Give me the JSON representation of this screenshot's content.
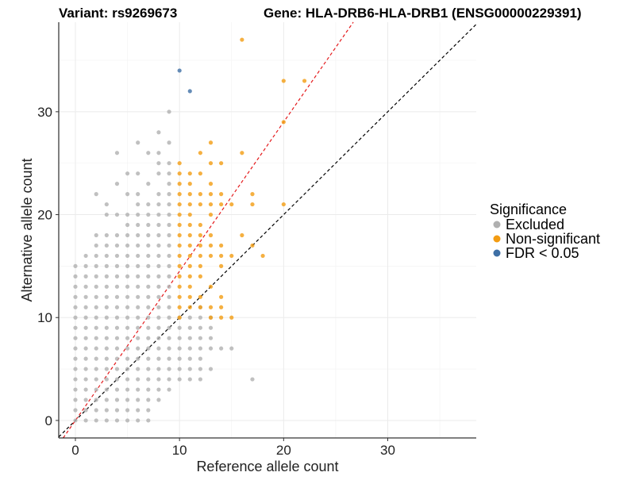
{
  "chart_data": {
    "type": "scatter",
    "title_left": "Variant: rs9269673",
    "title_right": "Gene: HLA-DRB6-HLA-DRB1 (ENSG00000229391)",
    "xlabel": "Reference allele count",
    "ylabel": "Alternative allele count",
    "xlim": [
      -1.6,
      38.5
    ],
    "ylim": [
      -1.7,
      38.7
    ],
    "xticks": [
      0,
      10,
      20,
      30
    ],
    "yticks": [
      0,
      10,
      20,
      30
    ],
    "grid": true,
    "reference_lines": [
      {
        "name": "identity",
        "slope": 1,
        "intercept": 0,
        "color": "#000000"
      },
      {
        "name": "fit",
        "slope": 1.45,
        "intercept": 0,
        "color": "#e41a1c"
      }
    ],
    "legend": {
      "title": "Significance",
      "position": "right",
      "entries": [
        {
          "label": "Excluded",
          "color": "#b0b0b0"
        },
        {
          "label": "Non-significant",
          "color": "#f39c12"
        },
        {
          "label": "FDR < 0.05",
          "color": "#3e6fa5"
        }
      ]
    },
    "series": [
      {
        "name": "Excluded",
        "color": "#b0b0b0",
        "points": [
          [
            0,
            0
          ],
          [
            0,
            1
          ],
          [
            0,
            2
          ],
          [
            0,
            3
          ],
          [
            0,
            4
          ],
          [
            0,
            5
          ],
          [
            0,
            6
          ],
          [
            0,
            7
          ],
          [
            0,
            8
          ],
          [
            0,
            9
          ],
          [
            0,
            10
          ],
          [
            0,
            11
          ],
          [
            0,
            12
          ],
          [
            0,
            13
          ],
          [
            0,
            14
          ],
          [
            0,
            15
          ],
          [
            1,
            0
          ],
          [
            1,
            1
          ],
          [
            1,
            2
          ],
          [
            1,
            3
          ],
          [
            1,
            4
          ],
          [
            1,
            5
          ],
          [
            1,
            6
          ],
          [
            1,
            7
          ],
          [
            1,
            8
          ],
          [
            1,
            9
          ],
          [
            1,
            10
          ],
          [
            1,
            11
          ],
          [
            1,
            12
          ],
          [
            1,
            13
          ],
          [
            1,
            14
          ],
          [
            1,
            15
          ],
          [
            1,
            16
          ],
          [
            2,
            0
          ],
          [
            2,
            1
          ],
          [
            2,
            2
          ],
          [
            2,
            3
          ],
          [
            2,
            4
          ],
          [
            2,
            5
          ],
          [
            2,
            6
          ],
          [
            2,
            7
          ],
          [
            2,
            8
          ],
          [
            2,
            9
          ],
          [
            2,
            10
          ],
          [
            2,
            11
          ],
          [
            2,
            12
          ],
          [
            2,
            13
          ],
          [
            2,
            14
          ],
          [
            2,
            15
          ],
          [
            2,
            16
          ],
          [
            2,
            17
          ],
          [
            2,
            18
          ],
          [
            2,
            22
          ],
          [
            3,
            0
          ],
          [
            3,
            1
          ],
          [
            3,
            2
          ],
          [
            3,
            3
          ],
          [
            3,
            4
          ],
          [
            3,
            5
          ],
          [
            3,
            6
          ],
          [
            3,
            7
          ],
          [
            3,
            8
          ],
          [
            3,
            9
          ],
          [
            3,
            10
          ],
          [
            3,
            11
          ],
          [
            3,
            12
          ],
          [
            3,
            13
          ],
          [
            3,
            14
          ],
          [
            3,
            15
          ],
          [
            3,
            16
          ],
          [
            3,
            17
          ],
          [
            3,
            18
          ],
          [
            3,
            20
          ],
          [
            3,
            21
          ],
          [
            4,
            0
          ],
          [
            4,
            1
          ],
          [
            4,
            2
          ],
          [
            4,
            3
          ],
          [
            4,
            4
          ],
          [
            4,
            5
          ],
          [
            4,
            6
          ],
          [
            4,
            7
          ],
          [
            4,
            8
          ],
          [
            4,
            9
          ],
          [
            4,
            10
          ],
          [
            4,
            11
          ],
          [
            4,
            12
          ],
          [
            4,
            13
          ],
          [
            4,
            14
          ],
          [
            4,
            15
          ],
          [
            4,
            16
          ],
          [
            4,
            17
          ],
          [
            4,
            18
          ],
          [
            4,
            20
          ],
          [
            4,
            23
          ],
          [
            4,
            26
          ],
          [
            5,
            0
          ],
          [
            5,
            1
          ],
          [
            5,
            2
          ],
          [
            5,
            3
          ],
          [
            5,
            4
          ],
          [
            5,
            5
          ],
          [
            5,
            6
          ],
          [
            5,
            7
          ],
          [
            5,
            8
          ],
          [
            5,
            9
          ],
          [
            5,
            10
          ],
          [
            5,
            11
          ],
          [
            5,
            12
          ],
          [
            5,
            13
          ],
          [
            5,
            14
          ],
          [
            5,
            15
          ],
          [
            5,
            16
          ],
          [
            5,
            17
          ],
          [
            5,
            18
          ],
          [
            5,
            19
          ],
          [
            5,
            20
          ],
          [
            5,
            22
          ],
          [
            5,
            24
          ],
          [
            6,
            0
          ],
          [
            6,
            1
          ],
          [
            6,
            2
          ],
          [
            6,
            3
          ],
          [
            6,
            4
          ],
          [
            6,
            5
          ],
          [
            6,
            6
          ],
          [
            6,
            7
          ],
          [
            6,
            8
          ],
          [
            6,
            9
          ],
          [
            6,
            10
          ],
          [
            6,
            11
          ],
          [
            6,
            12
          ],
          [
            6,
            13
          ],
          [
            6,
            14
          ],
          [
            6,
            15
          ],
          [
            6,
            16
          ],
          [
            6,
            17
          ],
          [
            6,
            18
          ],
          [
            6,
            19
          ],
          [
            6,
            20
          ],
          [
            6,
            21
          ],
          [
            6,
            22
          ],
          [
            6,
            24
          ],
          [
            6,
            27
          ],
          [
            7,
            0
          ],
          [
            7,
            1
          ],
          [
            7,
            2
          ],
          [
            7,
            3
          ],
          [
            7,
            4
          ],
          [
            7,
            5
          ],
          [
            7,
            6
          ],
          [
            7,
            7
          ],
          [
            7,
            8
          ],
          [
            7,
            9
          ],
          [
            7,
            10
          ],
          [
            7,
            11
          ],
          [
            7,
            12
          ],
          [
            7,
            13
          ],
          [
            7,
            14
          ],
          [
            7,
            15
          ],
          [
            7,
            16
          ],
          [
            7,
            17
          ],
          [
            7,
            18
          ],
          [
            7,
            19
          ],
          [
            7,
            20
          ],
          [
            7,
            21
          ],
          [
            7,
            23
          ],
          [
            7,
            26
          ],
          [
            8,
            2
          ],
          [
            8,
            3
          ],
          [
            8,
            4
          ],
          [
            8,
            5
          ],
          [
            8,
            6
          ],
          [
            8,
            7
          ],
          [
            8,
            8
          ],
          [
            8,
            9
          ],
          [
            8,
            10
          ],
          [
            8,
            11
          ],
          [
            8,
            12
          ],
          [
            8,
            13
          ],
          [
            8,
            14
          ],
          [
            8,
            15
          ],
          [
            8,
            16
          ],
          [
            8,
            17
          ],
          [
            8,
            18
          ],
          [
            8,
            19
          ],
          [
            8,
            20
          ],
          [
            8,
            21
          ],
          [
            8,
            22
          ],
          [
            8,
            24
          ],
          [
            8,
            25
          ],
          [
            8,
            26
          ],
          [
            8,
            28
          ],
          [
            9,
            3
          ],
          [
            9,
            4
          ],
          [
            9,
            5
          ],
          [
            9,
            6
          ],
          [
            9,
            7
          ],
          [
            9,
            8
          ],
          [
            9,
            9
          ],
          [
            9,
            10
          ],
          [
            9,
            11
          ],
          [
            9,
            12
          ],
          [
            9,
            13
          ],
          [
            9,
            14
          ],
          [
            9,
            15
          ],
          [
            9,
            16
          ],
          [
            9,
            17
          ],
          [
            9,
            18
          ],
          [
            9,
            19
          ],
          [
            9,
            20
          ],
          [
            9,
            21
          ],
          [
            9,
            22
          ],
          [
            9,
            23
          ],
          [
            9,
            24
          ],
          [
            9,
            25
          ],
          [
            9,
            27
          ],
          [
            9,
            30
          ],
          [
            10,
            4
          ],
          [
            10,
            5
          ],
          [
            10,
            6
          ],
          [
            10,
            7
          ],
          [
            10,
            8
          ],
          [
            10,
            9
          ],
          [
            10,
            10
          ],
          [
            11,
            4
          ],
          [
            11,
            5
          ],
          [
            11,
            6
          ],
          [
            11,
            7
          ],
          [
            11,
            8
          ],
          [
            11,
            9
          ],
          [
            11,
            10
          ],
          [
            12,
            4
          ],
          [
            12,
            5
          ],
          [
            12,
            6
          ],
          [
            12,
            7
          ],
          [
            12,
            8
          ],
          [
            12,
            9
          ],
          [
            12,
            10
          ],
          [
            12,
            11
          ],
          [
            13,
            5
          ],
          [
            13,
            7
          ],
          [
            13,
            8
          ],
          [
            13,
            9
          ],
          [
            13,
            10
          ],
          [
            14,
            7
          ],
          [
            15,
            7
          ],
          [
            17,
            4
          ]
        ]
      },
      {
        "name": "Non-significant",
        "color": "#f39c12",
        "points": [
          [
            10,
            10
          ],
          [
            10,
            11
          ],
          [
            10,
            12
          ],
          [
            10,
            13
          ],
          [
            10,
            14
          ],
          [
            10,
            15
          ],
          [
            10,
            16
          ],
          [
            10,
            17
          ],
          [
            10,
            18
          ],
          [
            10,
            19
          ],
          [
            10,
            20
          ],
          [
            10,
            21
          ],
          [
            10,
            22
          ],
          [
            10,
            23
          ],
          [
            10,
            24
          ],
          [
            10,
            25
          ],
          [
            11,
            11
          ],
          [
            11,
            12
          ],
          [
            11,
            13
          ],
          [
            11,
            14
          ],
          [
            11,
            15
          ],
          [
            11,
            16
          ],
          [
            11,
            17
          ],
          [
            11,
            18
          ],
          [
            11,
            19
          ],
          [
            11,
            20
          ],
          [
            11,
            21
          ],
          [
            11,
            22
          ],
          [
            11,
            23
          ],
          [
            11,
            24
          ],
          [
            12,
            11
          ],
          [
            12,
            12
          ],
          [
            12,
            14
          ],
          [
            12,
            15
          ],
          [
            12,
            16
          ],
          [
            12,
            17
          ],
          [
            12,
            18
          ],
          [
            12,
            19
          ],
          [
            12,
            21
          ],
          [
            12,
            22
          ],
          [
            12,
            24
          ],
          [
            12,
            26
          ],
          [
            13,
            10
          ],
          [
            13,
            11
          ],
          [
            13,
            13
          ],
          [
            13,
            16
          ],
          [
            13,
            17
          ],
          [
            13,
            18
          ],
          [
            13,
            20
          ],
          [
            13,
            21
          ],
          [
            13,
            22
          ],
          [
            13,
            23
          ],
          [
            13,
            25
          ],
          [
            13,
            27
          ],
          [
            14,
            10
          ],
          [
            14,
            11
          ],
          [
            14,
            12
          ],
          [
            14,
            15
          ],
          [
            14,
            16
          ],
          [
            14,
            17
          ],
          [
            14,
            21
          ],
          [
            14,
            22
          ],
          [
            14,
            25
          ],
          [
            15,
            10
          ],
          [
            15,
            16
          ],
          [
            15,
            21
          ],
          [
            16,
            18
          ],
          [
            16,
            26
          ],
          [
            16,
            37
          ],
          [
            17,
            17
          ],
          [
            17,
            21
          ],
          [
            17,
            22
          ],
          [
            18,
            16
          ],
          [
            20,
            21
          ],
          [
            20,
            29
          ],
          [
            20,
            33
          ],
          [
            22,
            33
          ]
        ]
      },
      {
        "name": "FDR < 0.05",
        "color": "#3e6fa5",
        "points": [
          [
            10,
            34
          ],
          [
            11,
            32
          ]
        ]
      }
    ]
  }
}
